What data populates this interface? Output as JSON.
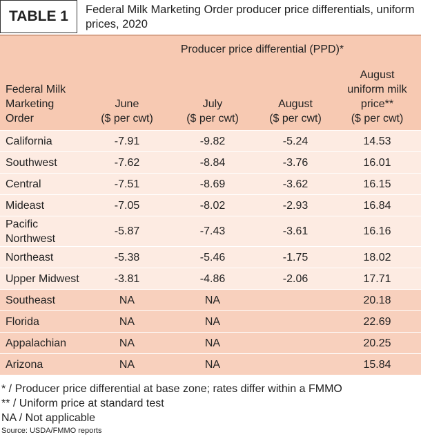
{
  "header": {
    "label": "TABLE 1",
    "title": "Federal Milk Marketing Order producer price differentials, uniform prices, 2020"
  },
  "table": {
    "group_header": "Producer price differential (PPD)*",
    "columns": [
      "Federal Milk\nMarketing\nOrder",
      "June\n($ per cwt)",
      "July\n($ per cwt)",
      "August\n($ per cwt)",
      "August\nuniform milk\nprice**\n($ per cwt)"
    ],
    "rows": [
      [
        "California",
        "-7.91",
        "-9.82",
        "-5.24",
        "14.53"
      ],
      [
        "Southwest",
        "-7.62",
        "-8.84",
        "-3.76",
        "16.01"
      ],
      [
        "Central",
        "-7.51",
        "-8.69",
        "-3.62",
        "16.15"
      ],
      [
        "Mideast",
        "-7.05",
        "-8.02",
        "-2.93",
        "16.84"
      ],
      [
        "Pacific\nNorthwest",
        "-5.87",
        "-7.43",
        "-3.61",
        "16.16"
      ],
      [
        "Northeast",
        "-5.38",
        "-5.46",
        "-1.75",
        "18.02"
      ],
      [
        "Upper Midwest",
        "-3.81",
        "-4.86",
        "-2.06",
        "17.71"
      ],
      [
        "Southeast",
        "NA",
        "NA",
        null,
        "20.18"
      ],
      [
        "Florida",
        "NA",
        "NA",
        null,
        "22.69"
      ],
      [
        "Appalachian",
        "NA",
        "NA",
        null,
        "20.25"
      ],
      [
        "Arizona",
        "NA",
        "NA",
        null,
        "15.84"
      ]
    ]
  },
  "footnotes": [
    "* / Producer price differential at base zone; rates differ within a FMMO",
    "** / Uniform price at standard test",
    "NA / Not applicable"
  ],
  "source": "Source: USDA/FMMO reports"
}
